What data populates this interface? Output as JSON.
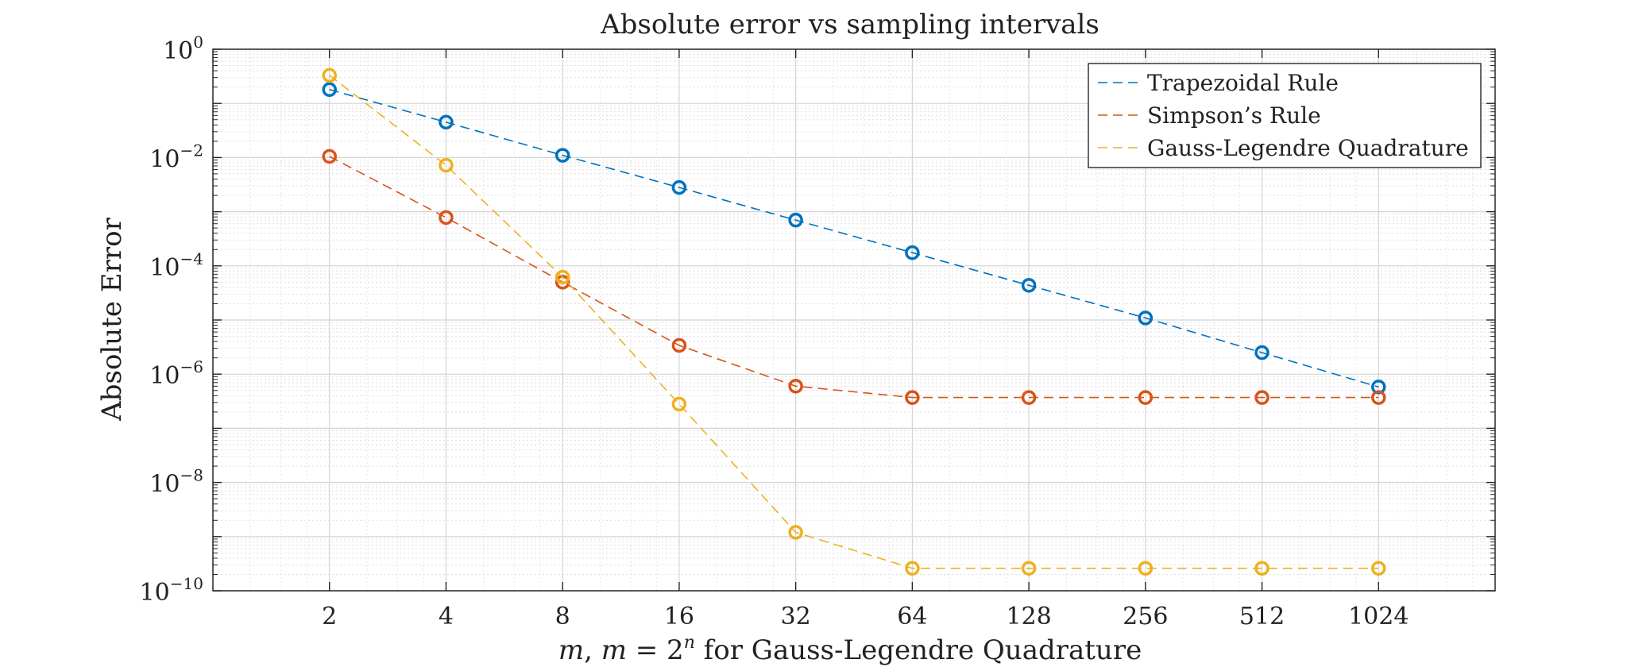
{
  "chart_data": {
    "type": "line",
    "title": "Absolute error vs sampling intervals",
    "xlabel": "m, m = 2^n for Gauss-Legendre Quadrature",
    "xlabel_parts": {
      "m1": "m",
      "comma": ", ",
      "m2": "m",
      "eq": " = 2",
      "exp": "n",
      "rest": " for Gauss-Legendre Quadrature"
    },
    "ylabel": "Absolute Error",
    "x_scale": "log2",
    "y_scale": "log10",
    "xlim": [
      1,
      2048
    ],
    "ylim": [
      1e-10,
      1
    ],
    "x": [
      2,
      4,
      8,
      16,
      32,
      64,
      128,
      256,
      512,
      1024
    ],
    "x_tick_labels": [
      "2",
      "4",
      "8",
      "16",
      "32",
      "64",
      "128",
      "256",
      "512",
      "1024"
    ],
    "y_ticks": [
      {
        "value": 1,
        "base": "10",
        "exp": "0"
      },
      {
        "value": 0.01,
        "base": "10",
        "exp": "−2"
      },
      {
        "value": 0.0001,
        "base": "10",
        "exp": "−4"
      },
      {
        "value": 1e-06,
        "base": "10",
        "exp": "−6"
      },
      {
        "value": 1e-08,
        "base": "10",
        "exp": "−8"
      },
      {
        "value": 1e-10,
        "base": "10",
        "exp": "−10"
      }
    ],
    "grid": true,
    "minor_grid": true,
    "legend_position": "top-right",
    "line_style": "dashed",
    "marker": "circle",
    "series": [
      {
        "name": "Trapezoidal Rule",
        "color": "#0072BD",
        "values": [
          0.18,
          0.045,
          0.011,
          0.0028,
          0.0007,
          0.000175,
          4.37e-05,
          1.09e-05,
          2.5e-06,
          5.8e-07
        ]
      },
      {
        "name": "Simpson’s Rule",
        "color": "#D95319",
        "values": [
          0.0105,
          0.00078,
          5e-05,
          3.4e-06,
          6e-07,
          3.7e-07,
          3.7e-07,
          3.7e-07,
          3.7e-07,
          3.7e-07
        ]
      },
      {
        "name": "Gauss-Legendre Quadrature",
        "color": "#EDB120",
        "values": [
          0.33,
          0.0072,
          6.2e-05,
          2.8e-07,
          1.2e-09,
          2.6e-10,
          2.6e-10,
          2.6e-10,
          2.6e-10,
          2.6e-10
        ]
      }
    ]
  }
}
